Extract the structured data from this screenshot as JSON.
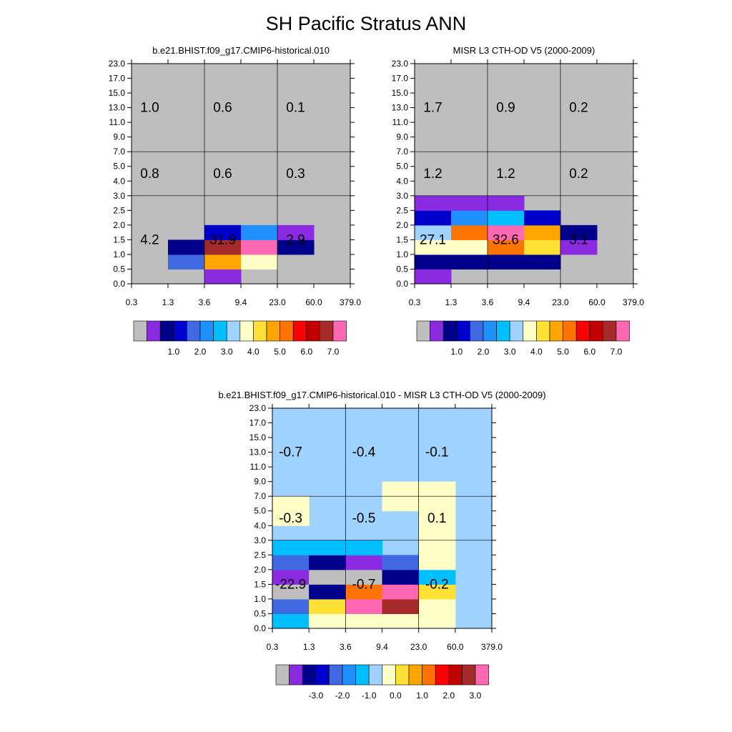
{
  "page": {
    "title": "SH Pacific Stratus ANN"
  },
  "chart_data": [
    {
      "type": "heatmap",
      "title": "b.e21.BHIST.f09_g17.CMIP6-historical.010",
      "x_ticks": [
        "0.3",
        "1.3",
        "3.6",
        "9.4",
        "23.0",
        "60.0",
        "379.0"
      ],
      "y_ticks": [
        "0.0",
        "0.5",
        "1.0",
        "1.5",
        "2.0",
        "2.5",
        "3.0",
        "4.0",
        "5.0",
        "7.0",
        "9.0",
        "11.0",
        "13.0",
        "15.0",
        "17.0",
        "23.0"
      ],
      "x_dividers": [
        2,
        4
      ],
      "y_dividers": [
        6,
        9
      ],
      "background_color": "#bebebe",
      "cells": [
        {
          "col": 2,
          "row": 0,
          "color": "#8a2be2"
        },
        {
          "col": 1,
          "row": 1,
          "color": "#4169e1"
        },
        {
          "col": 2,
          "row": 1,
          "color": "#ffa500"
        },
        {
          "col": 3,
          "row": 1,
          "color": "#ffffc8"
        },
        {
          "col": 1,
          "row": 2,
          "color": "#00008b"
        },
        {
          "col": 2,
          "row": 2,
          "color": "#a52a2a"
        },
        {
          "col": 3,
          "row": 2,
          "color": "#ff69b4"
        },
        {
          "col": 4,
          "row": 2,
          "color": "#00008b"
        },
        {
          "col": 2,
          "row": 3,
          "color": "#0000cd"
        },
        {
          "col": 3,
          "row": 3,
          "color": "#1e90ff"
        },
        {
          "col": 4,
          "row": 3,
          "color": "#8a2be2"
        }
      ],
      "box_labels": [
        {
          "text": "1.0",
          "col": 0.5,
          "row": 12
        },
        {
          "text": "0.6",
          "col": 2.5,
          "row": 12
        },
        {
          "text": "0.1",
          "col": 4.5,
          "row": 12
        },
        {
          "text": "0.8",
          "col": 0.5,
          "row": 7.5
        },
        {
          "text": "0.6",
          "col": 2.5,
          "row": 7.5
        },
        {
          "text": "0.3",
          "col": 4.5,
          "row": 7.5
        },
        {
          "text": "4.2",
          "col": 0.5,
          "row": 3
        },
        {
          "text": "31.9",
          "col": 2.5,
          "row": 3
        },
        {
          "text": "2.9",
          "col": 4.5,
          "row": 3
        }
      ],
      "colorbar": {
        "colors": [
          "#bebebe",
          "#8a2be2",
          "#00008b",
          "#0000cd",
          "#4169e1",
          "#1e90ff",
          "#00bfff",
          "#a0d2ff",
          "#ffffc8",
          "#ffe135",
          "#ffa500",
          "#ff7400",
          "#ff0000",
          "#c00000",
          "#a52a2a",
          "#ff69b4"
        ],
        "labels": [
          "1.0",
          "2.0",
          "3.0",
          "4.0",
          "5.0",
          "6.0",
          "7.0"
        ]
      }
    },
    {
      "type": "heatmap",
      "title": "MISR L3 CTH-OD V5 (2000-2009)",
      "x_ticks": [
        "0.3",
        "1.3",
        "3.6",
        "9.4",
        "23.0",
        "60.0",
        "379.0"
      ],
      "y_ticks": [
        "0.0",
        "0.5",
        "1.0",
        "1.5",
        "2.0",
        "2.5",
        "3.0",
        "4.0",
        "5.0",
        "7.0",
        "9.0",
        "11.0",
        "13.0",
        "15.0",
        "17.0",
        "23.0"
      ],
      "x_dividers": [
        2,
        4
      ],
      "y_dividers": [
        6,
        9
      ],
      "background_color": "#bebebe",
      "cells": [
        {
          "col": 0,
          "row": 0,
          "color": "#8a2be2"
        },
        {
          "col": 0,
          "row": 1,
          "color": "#00008b"
        },
        {
          "col": 1,
          "row": 1,
          "color": "#00008b"
        },
        {
          "col": 2,
          "row": 1,
          "color": "#00008b"
        },
        {
          "col": 3,
          "row": 1,
          "color": "#00008b"
        },
        {
          "col": 0,
          "row": 2,
          "color": "#ffffc8"
        },
        {
          "col": 1,
          "row": 2,
          "color": "#ffffc8"
        },
        {
          "col": 2,
          "row": 2,
          "color": "#ff7400"
        },
        {
          "col": 3,
          "row": 2,
          "color": "#ffe135"
        },
        {
          "col": 4,
          "row": 2,
          "color": "#8a2be2"
        },
        {
          "col": 0,
          "row": 3,
          "color": "#a0d2ff"
        },
        {
          "col": 1,
          "row": 3,
          "color": "#ff7400"
        },
        {
          "col": 2,
          "row": 3,
          "color": "#ff69b4"
        },
        {
          "col": 3,
          "row": 3,
          "color": "#ffa500"
        },
        {
          "col": 4,
          "row": 3,
          "color": "#00008b"
        },
        {
          "col": 0,
          "row": 4,
          "color": "#0000cd"
        },
        {
          "col": 1,
          "row": 4,
          "color": "#1e90ff"
        },
        {
          "col": 2,
          "row": 4,
          "color": "#00bfff"
        },
        {
          "col": 3,
          "row": 4,
          "color": "#0000cd"
        },
        {
          "col": 0,
          "row": 5,
          "color": "#8a2be2"
        },
        {
          "col": 1,
          "row": 5,
          "color": "#8a2be2"
        },
        {
          "col": 2,
          "row": 5,
          "color": "#8a2be2"
        }
      ],
      "box_labels": [
        {
          "text": "1.7",
          "col": 0.5,
          "row": 12
        },
        {
          "text": "0.9",
          "col": 2.5,
          "row": 12
        },
        {
          "text": "0.2",
          "col": 4.5,
          "row": 12
        },
        {
          "text": "1.2",
          "col": 0.5,
          "row": 7.5
        },
        {
          "text": "1.2",
          "col": 2.5,
          "row": 7.5
        },
        {
          "text": "0.2",
          "col": 4.5,
          "row": 7.5
        },
        {
          "text": "27.1",
          "col": 0.5,
          "row": 3
        },
        {
          "text": "32.6",
          "col": 2.5,
          "row": 3
        },
        {
          "text": "3.1",
          "col": 4.5,
          "row": 3
        }
      ],
      "colorbar": {
        "colors": [
          "#bebebe",
          "#8a2be2",
          "#00008b",
          "#0000cd",
          "#4169e1",
          "#1e90ff",
          "#00bfff",
          "#a0d2ff",
          "#ffffc8",
          "#ffe135",
          "#ffa500",
          "#ff7400",
          "#ff0000",
          "#c00000",
          "#a52a2a",
          "#ff69b4"
        ],
        "labels": [
          "1.0",
          "2.0",
          "3.0",
          "4.0",
          "5.0",
          "6.0",
          "7.0"
        ]
      }
    },
    {
      "type": "heatmap",
      "title": "b.e21.BHIST.f09_g17.CMIP6-historical.010 - MISR L3 CTH-OD V5 (2000-2009)",
      "x_ticks": [
        "0.3",
        "1.3",
        "3.6",
        "9.4",
        "23.0",
        "60.0",
        "379.0"
      ],
      "y_ticks": [
        "0.0",
        "0.5",
        "1.0",
        "1.5",
        "2.0",
        "2.5",
        "3.0",
        "4.0",
        "5.0",
        "7.0",
        "9.0",
        "11.0",
        "13.0",
        "15.0",
        "17.0",
        "23.0"
      ],
      "x_dividers": [
        2,
        4
      ],
      "y_dividers": [
        6,
        9
      ],
      "background_color": "#a0d2ff",
      "cells": [
        {
          "col": 0,
          "row": 0,
          "color": "#00bfff"
        },
        {
          "col": 1,
          "row": 0,
          "color": "#ffffc8"
        },
        {
          "col": 2,
          "row": 0,
          "color": "#ffffc8"
        },
        {
          "col": 3,
          "row": 0,
          "color": "#ffffc8"
        },
        {
          "col": 4,
          "row": 0,
          "color": "#ffffc8"
        },
        {
          "col": 0,
          "row": 1,
          "color": "#4169e1"
        },
        {
          "col": 1,
          "row": 1,
          "color": "#ffe135"
        },
        {
          "col": 2,
          "row": 1,
          "color": "#ff69b4"
        },
        {
          "col": 3,
          "row": 1,
          "color": "#a52a2a"
        },
        {
          "col": 4,
          "row": 1,
          "color": "#ffffc8"
        },
        {
          "col": 0,
          "row": 2,
          "color": "#bebebe"
        },
        {
          "col": 1,
          "row": 2,
          "color": "#00008b"
        },
        {
          "col": 2,
          "row": 2,
          "color": "#ff7400"
        },
        {
          "col": 3,
          "row": 2,
          "color": "#ff69b4"
        },
        {
          "col": 4,
          "row": 2,
          "color": "#ffe135"
        },
        {
          "col": 0,
          "row": 3,
          "color": "#8a2be2"
        },
        {
          "col": 1,
          "row": 3,
          "color": "#bebebe"
        },
        {
          "col": 2,
          "row": 3,
          "color": "#bebebe"
        },
        {
          "col": 3,
          "row": 3,
          "color": "#00008b"
        },
        {
          "col": 4,
          "row": 3,
          "color": "#00bfff"
        },
        {
          "col": 0,
          "row": 4,
          "color": "#4169e1"
        },
        {
          "col": 1,
          "row": 4,
          "color": "#00008b"
        },
        {
          "col": 2,
          "row": 4,
          "color": "#8a2be2"
        },
        {
          "col": 3,
          "row": 4,
          "color": "#4169e1"
        },
        {
          "col": 4,
          "row": 4,
          "color": "#ffffc8"
        },
        {
          "col": 0,
          "row": 5,
          "color": "#00bfff"
        },
        {
          "col": 1,
          "row": 5,
          "color": "#00bfff"
        },
        {
          "col": 2,
          "row": 5,
          "color": "#00bfff"
        },
        {
          "col": 4,
          "row": 5,
          "color": "#ffffc8"
        },
        {
          "col": 4,
          "row": 6,
          "color": "#ffffc8"
        },
        {
          "col": 0,
          "row": 7,
          "color": "#ffffc8"
        },
        {
          "col": 4,
          "row": 7,
          "color": "#ffffc8"
        },
        {
          "col": 0,
          "row": 8,
          "color": "#ffffc8"
        },
        {
          "col": 3,
          "row": 8,
          "color": "#ffffc8"
        },
        {
          "col": 4,
          "row": 8,
          "color": "#ffffc8"
        },
        {
          "col": 3,
          "row": 9,
          "color": "#ffffc8"
        },
        {
          "col": 4,
          "row": 9,
          "color": "#ffffc8"
        }
      ],
      "box_labels": [
        {
          "text": "-0.7",
          "col": 0.5,
          "row": 12
        },
        {
          "text": "-0.4",
          "col": 2.5,
          "row": 12
        },
        {
          "text": "-0.1",
          "col": 4.5,
          "row": 12
        },
        {
          "text": "-0.3",
          "col": 0.5,
          "row": 7.5
        },
        {
          "text": "-0.5",
          "col": 2.5,
          "row": 7.5
        },
        {
          "text": "0.1",
          "col": 4.5,
          "row": 7.5
        },
        {
          "text": "-22.9",
          "col": 0.5,
          "row": 3
        },
        {
          "text": "-0.7",
          "col": 2.5,
          "row": 3
        },
        {
          "text": "-0.2",
          "col": 4.5,
          "row": 3
        }
      ],
      "colorbar": {
        "colors": [
          "#bebebe",
          "#8a2be2",
          "#00008b",
          "#0000cd",
          "#4169e1",
          "#1e90ff",
          "#00bfff",
          "#a0d2ff",
          "#ffffc8",
          "#ffe135",
          "#ffa500",
          "#ff7400",
          "#ff0000",
          "#c00000",
          "#a52a2a",
          "#ff69b4"
        ],
        "labels": [
          "-3.0",
          "-2.0",
          "-1.0",
          "0.0",
          "1.0",
          "2.0",
          "3.0"
        ]
      }
    }
  ]
}
